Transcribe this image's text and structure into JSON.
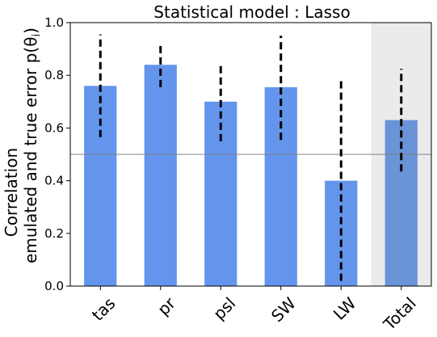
{
  "chart_data": {
    "type": "bar",
    "title": "Statistical model : Lasso",
    "ylabel_line1": "Correlation",
    "ylabel_line2": "emulated and true error p(θ",
    "ylabel_sub": "i",
    "ylabel_tail": ")",
    "categories": [
      "tas",
      "pr",
      "psl",
      "SW",
      "LW",
      "Total"
    ],
    "values": [
      0.76,
      0.84,
      0.7,
      0.755,
      0.4,
      0.63
    ],
    "error_low": [
      0.565,
      0.755,
      0.55,
      0.555,
      0.02,
      0.435
    ],
    "error_high": [
      0.955,
      0.92,
      0.85,
      0.95,
      0.78,
      0.825
    ],
    "ylim": [
      0.0,
      1.0
    ],
    "yticks": [
      "0.0",
      "0.2",
      "0.4",
      "0.6",
      "0.8",
      "1.0"
    ],
    "ytick_values": [
      0.0,
      0.2,
      0.4,
      0.6,
      0.8,
      1.0
    ],
    "reference_line": 0.5,
    "highlighted_category": "Total",
    "grid": false,
    "colors": {
      "bar": "#6495ed",
      "bar_highlight": "#6a93d8",
      "highlight_background": "#ebebeb",
      "errorbar": "#000000",
      "reference_line": "#808080"
    }
  }
}
